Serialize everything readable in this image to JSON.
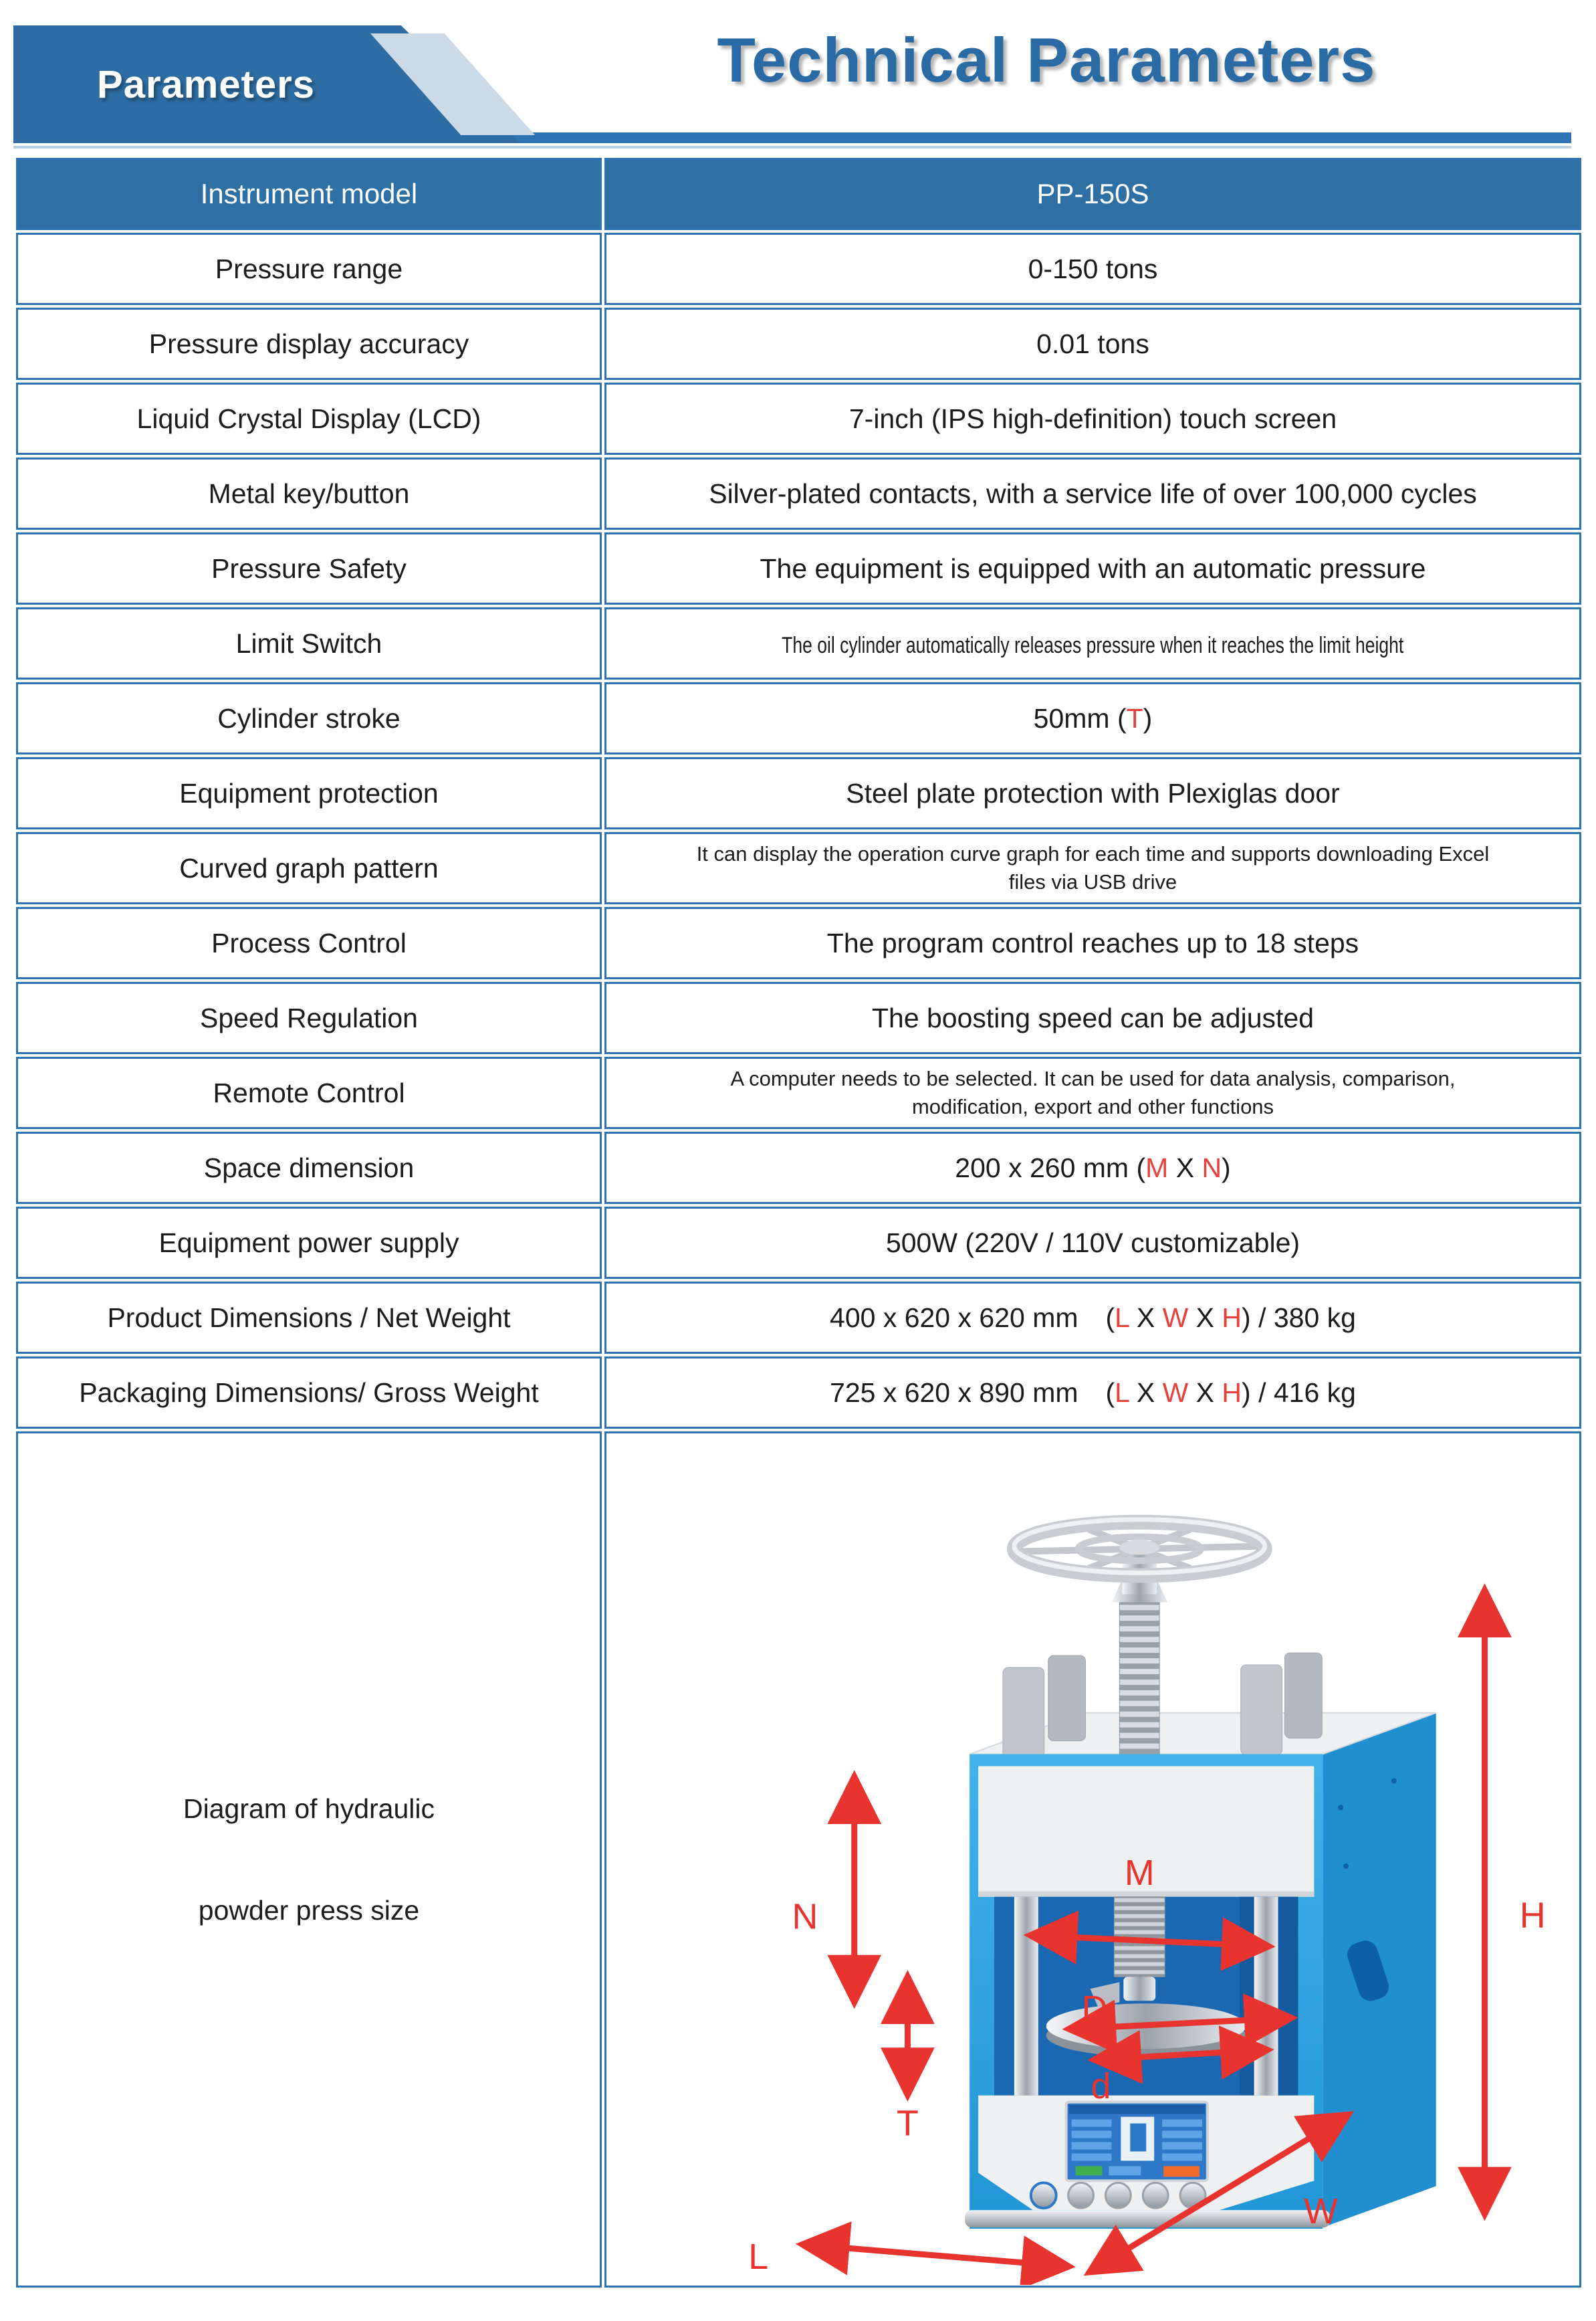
{
  "header": {
    "tab_label": "Parameters",
    "title": "Technical Parameters"
  },
  "table": {
    "header_row": {
      "label": "Instrument model",
      "value": "PP-150S"
    },
    "rows": [
      {
        "label": "Pressure range",
        "value": [
          {
            "t": "0-150 tons"
          }
        ]
      },
      {
        "label": "Pressure display accuracy",
        "value": [
          {
            "t": "0.01 tons"
          }
        ]
      },
      {
        "label": "Liquid Crystal Display (LCD)",
        "value": [
          {
            "t": "7-inch (IPS high-definition) touch screen"
          }
        ]
      },
      {
        "label": "Metal key/button",
        "value": [
          {
            "t": "Silver-plated contacts, with a service life of over 100,000 cycles"
          }
        ]
      },
      {
        "label": "Pressure Safety",
        "value": [
          {
            "t": "The equipment is equipped with an automatic pressure"
          }
        ]
      },
      {
        "label": "Limit Switch",
        "value": [
          {
            "t": "The oil cylinder automatically releases pressure when it reaches the limit height"
          }
        ]
      },
      {
        "label": "Cylinder stroke",
        "value": [
          {
            "t": "50mm ("
          },
          {
            "t": "T",
            "red": true
          },
          {
            "t": ")"
          }
        ]
      },
      {
        "label": "Equipment protection",
        "value": [
          {
            "t": "Steel plate protection with Plexiglas door"
          }
        ]
      },
      {
        "label": "Curved graph pattern",
        "value": [
          {
            "t": "It can display the operation curve graph for each time and supports downloading Excel files via USB drive"
          }
        ]
      },
      {
        "label": "Process Control",
        "value": [
          {
            "t": "The program control reaches up to 18 steps"
          }
        ]
      },
      {
        "label": "Speed Regulation",
        "value": [
          {
            "t": "The boosting speed can be adjusted"
          }
        ]
      },
      {
        "label": "Remote Control",
        "value": [
          {
            "t": "A computer needs to be selected. It can be used for data analysis, comparison, modification, export and other functions"
          }
        ]
      },
      {
        "label": "Space dimension",
        "value": [
          {
            "t": "200 x 260 mm ("
          },
          {
            "t": "M",
            "red": true
          },
          {
            "t": " X "
          },
          {
            "t": "N",
            "red": true
          },
          {
            "t": ")"
          }
        ]
      },
      {
        "label": "Equipment power supply",
        "value": [
          {
            "t": "500W (220V / 110V customizable)"
          }
        ]
      },
      {
        "label": "Product Dimensions / Net Weight",
        "value": [
          {
            "t": "400 x 620 x 620 mm ("
          },
          {
            "t": "L",
            "red": true
          },
          {
            "t": " X "
          },
          {
            "t": "W",
            "red": true
          },
          {
            "t": " X "
          },
          {
            "t": "H",
            "red": true
          },
          {
            "t": ") / 380 kg"
          }
        ]
      },
      {
        "label": "Packaging Dimensions/ Gross Weight",
        "value": [
          {
            "t": "725 x 620 x 890 mm ("
          },
          {
            "t": "L",
            "red": true
          },
          {
            "t": " X "
          },
          {
            "t": "W",
            "red": true
          },
          {
            "t": " X "
          },
          {
            "t": "H",
            "red": true
          },
          {
            "t": ") / 416 kg"
          }
        ]
      }
    ]
  },
  "diagram": {
    "caption_line1": "Diagram of hydraulic",
    "caption_line2": "powder press size",
    "labels": {
      "M": "M",
      "N": "N",
      "D": "D",
      "T": "T",
      "d": "d",
      "H": "H",
      "L": "L",
      "W": "W"
    }
  },
  "colors": {
    "brand_blue": "#2e6fa4",
    "table_border_blue": "#2e74b5",
    "tab_light_blue": "#ccd9e6",
    "accent_red": "#e8332e",
    "machine_blue": "#2ba2e0"
  }
}
